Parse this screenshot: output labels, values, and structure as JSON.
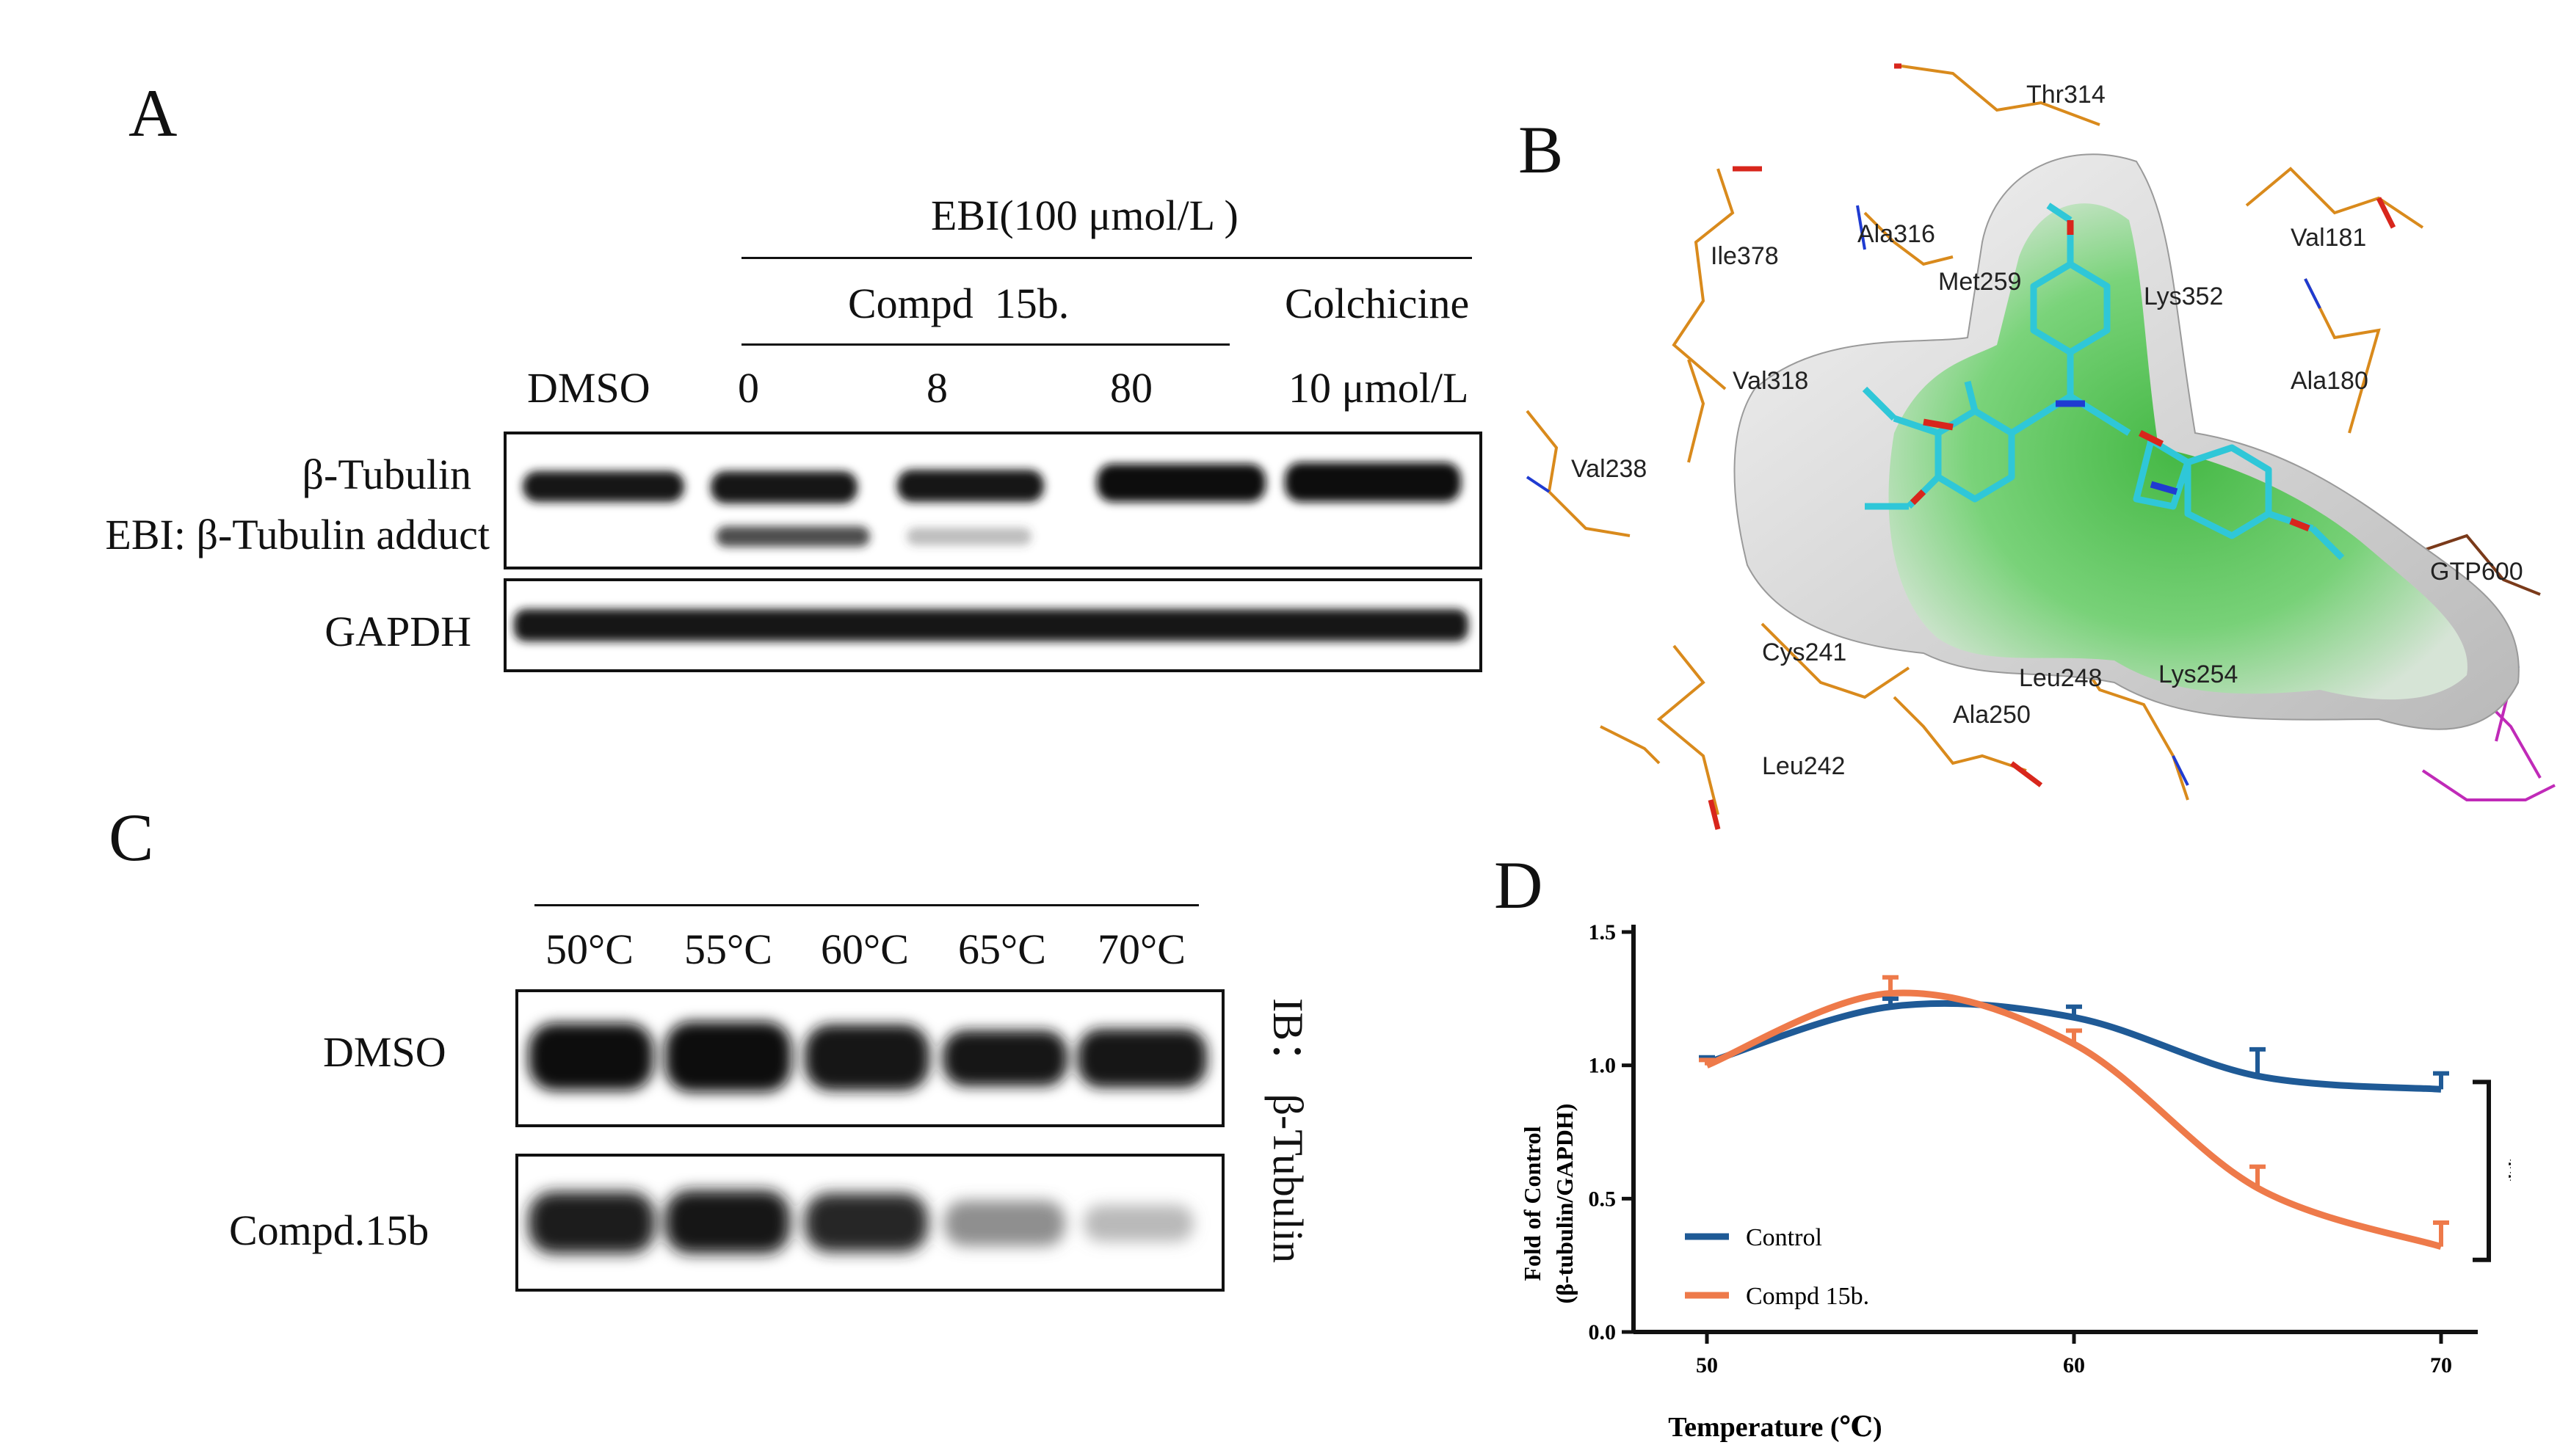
{
  "panels": {
    "a": "A",
    "b": "B",
    "c": "C",
    "d": "D"
  },
  "panel_a": {
    "header_group": "EBI(100 μmol/L )",
    "compound_group": "Compd  15b.",
    "colchicine_label": "Colchicine",
    "lanes": [
      "DMSO",
      "0",
      "8",
      "80",
      "10 μmol/L"
    ],
    "row_labels": {
      "tubulin": "β-Tubulin",
      "adduct": "EBI: β-Tubulin adduct",
      "gapdh": "GAPDH"
    },
    "tubulin_band_intensity": [
      1.0,
      1.0,
      1.0,
      1.0,
      1.0
    ],
    "adduct_band_intensity": [
      0.0,
      0.8,
      0.35,
      0.0,
      0.0
    ],
    "gapdh_band_intensity": [
      1.0,
      1.0,
      1.0,
      1.0,
      1.0
    ]
  },
  "panel_b": {
    "residues": [
      "Thr314",
      "Ile378",
      "Ala316",
      "Met259",
      "Lys352",
      "Val181",
      "Ala180",
      "Val318",
      "Val238",
      "GTP600",
      "Cys241",
      "Leu248",
      "Lys254",
      "Ala250",
      "Leu242"
    ],
    "colors": {
      "surface_green": "#3fbf3f",
      "ligand_cyan": "#2fc7d8",
      "residue_orange": "#d98a1c",
      "oxygen_red": "#d8261c",
      "nitrogen_blue": "#1f3bd1",
      "gtp_magenta": "#c02ab8"
    }
  },
  "panel_c": {
    "temperatures": [
      "50°C",
      "55°C",
      "60°C",
      "65°C",
      "70°C"
    ],
    "row_labels": {
      "dmso": "DMSO",
      "compound": "Compd.15b"
    },
    "ib_label": "IB： β-Tubulin",
    "dmso_band_intensity": [
      1.0,
      1.0,
      0.95,
      0.88,
      0.88
    ],
    "compound_band_intensity": [
      0.95,
      0.95,
      0.85,
      0.35,
      0.18
    ]
  },
  "chart_data": {
    "type": "line",
    "title": "",
    "xlabel": "Temperature (℃)",
    "ylabel_line1": "Fold of Control",
    "ylabel_line2": "(β-tubulin/GAPDH)",
    "x": [
      50,
      55,
      60,
      65,
      70
    ],
    "xlim": [
      48,
      71
    ],
    "ylim": [
      0,
      1.5
    ],
    "xticks": [
      "50",
      "60",
      "70"
    ],
    "xtick_values": [
      50,
      60,
      70
    ],
    "yticks": [
      "0.0",
      "0.5",
      "1.0",
      "1.5"
    ],
    "ytick_values": [
      0,
      0.5,
      1.0,
      1.5
    ],
    "series": [
      {
        "name": "Control",
        "color": "#1f5a96",
        "values": [
          1.01,
          1.22,
          1.18,
          0.96,
          0.91
        ],
        "errors": [
          0.02,
          0.03,
          0.04,
          0.1,
          0.06
        ]
      },
      {
        "name": "Compd 15b.",
        "color": "#ee7a4a",
        "values": [
          1.0,
          1.27,
          1.08,
          0.54,
          0.32
        ],
        "errors": [
          0.02,
          0.06,
          0.05,
          0.08,
          0.09
        ]
      }
    ],
    "significance": "**",
    "legend": "bottom-left",
    "grid": false
  }
}
